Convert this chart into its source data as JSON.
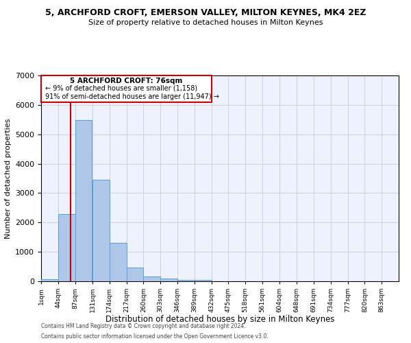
{
  "title": "5, ARCHFORD CROFT, EMERSON VALLEY, MILTON KEYNES, MK4 2EZ",
  "subtitle": "Size of property relative to detached houses in Milton Keynes",
  "xlabel": "Distribution of detached houses by size in Milton Keynes",
  "ylabel": "Number of detached properties",
  "footer_line1": "Contains HM Land Registry data © Crown copyright and database right 2024.",
  "footer_line2": "Contains public sector information licensed under the Open Government Licence v3.0.",
  "annotation_line1": "5 ARCHFORD CROFT: 76sqm",
  "annotation_line2": "← 9% of detached houses are smaller (1,158)",
  "annotation_line3": "91% of semi-detached houses are larger (11,947) →",
  "bar_left_edges": [
    1,
    44,
    87,
    131,
    174,
    217,
    260,
    303,
    346,
    389,
    432,
    475,
    518,
    561,
    604,
    648,
    691,
    734,
    777,
    820
  ],
  "bar_values": [
    80,
    2280,
    5480,
    3450,
    1310,
    470,
    155,
    85,
    55,
    40,
    0,
    0,
    0,
    0,
    0,
    0,
    0,
    0,
    0,
    0
  ],
  "bin_width": 43,
  "tick_labels": [
    "1sqm",
    "44sqm",
    "87sqm",
    "131sqm",
    "174sqm",
    "217sqm",
    "260sqm",
    "303sqm",
    "346sqm",
    "389sqm",
    "432sqm",
    "475sqm",
    "518sqm",
    "561sqm",
    "604sqm",
    "648sqm",
    "691sqm",
    "734sqm",
    "777sqm",
    "820sqm",
    "863sqm"
  ],
  "bar_color": "#aec6e8",
  "bar_edge_color": "#5a9fd4",
  "vline_x": 76,
  "vline_color": "#cc0000",
  "annotation_box_color": "#cc0000",
  "background_color": "#eef2ff",
  "grid_color": "#cccccc",
  "ylim": [
    0,
    7000
  ],
  "yticks": [
    0,
    1000,
    2000,
    3000,
    4000,
    5000,
    6000,
    7000
  ],
  "xlim_min": 1,
  "xlim_max": 906
}
